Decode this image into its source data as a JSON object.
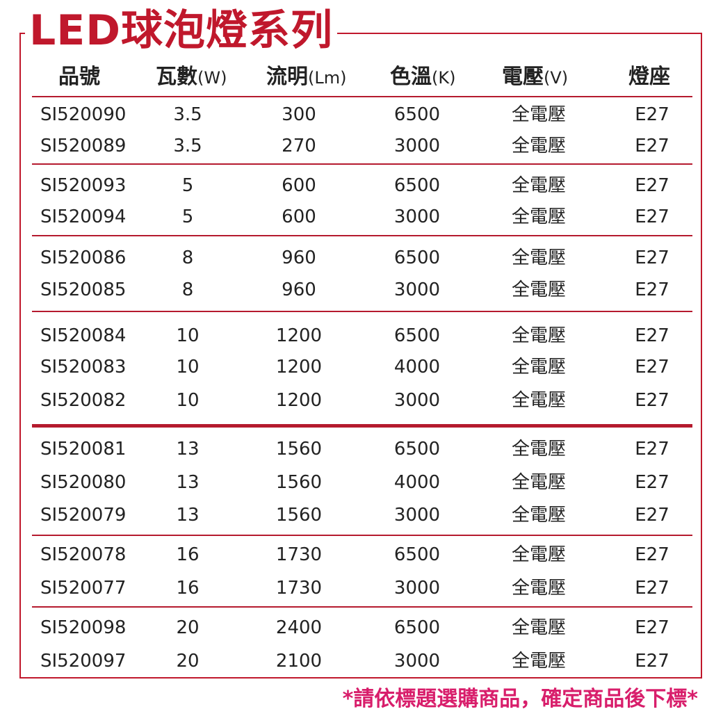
{
  "title": "LED球泡燈系列",
  "headers": [
    {
      "main": "品號",
      "unit": ""
    },
    {
      "main": "瓦數",
      "unit": "(W)"
    },
    {
      "main": "流明",
      "unit": "(Lm)"
    },
    {
      "main": "色溫",
      "unit": "(K)"
    },
    {
      "main": "電壓",
      "unit": "(V)"
    },
    {
      "main": "燈座",
      "unit": ""
    }
  ],
  "groups": [
    {
      "rows": [
        {
          "code": "SI520090",
          "watt": "3.5",
          "lumen": "300",
          "kelvin": "6500",
          "voltage": "全電壓",
          "base": "E27"
        },
        {
          "code": "SI520089",
          "watt": "3.5",
          "lumen": "270",
          "kelvin": "3000",
          "voltage": "全電壓",
          "base": "E27"
        }
      ]
    },
    {
      "rows": [
        {
          "code": "SI520093",
          "watt": "5",
          "lumen": "600",
          "kelvin": "6500",
          "voltage": "全電壓",
          "base": "E27"
        },
        {
          "code": "SI520094",
          "watt": "5",
          "lumen": "600",
          "kelvin": "3000",
          "voltage": "全電壓",
          "base": "E27"
        }
      ]
    },
    {
      "rows": [
        {
          "code": "SI520086",
          "watt": "8",
          "lumen": "960",
          "kelvin": "6500",
          "voltage": "全電壓",
          "base": "E27"
        },
        {
          "code": "SI520085",
          "watt": "8",
          "lumen": "960",
          "kelvin": "3000",
          "voltage": "全電壓",
          "base": "E27"
        }
      ]
    },
    {
      "rows": [
        {
          "code": "SI520084",
          "watt": "10",
          "lumen": "1200",
          "kelvin": "6500",
          "voltage": "全電壓",
          "base": "E27"
        },
        {
          "code": "SI520083",
          "watt": "10",
          "lumen": "1200",
          "kelvin": "4000",
          "voltage": "全電壓",
          "base": "E27"
        },
        {
          "code": "SI520082",
          "watt": "10",
          "lumen": "1200",
          "kelvin": "3000",
          "voltage": "全電壓",
          "base": "E27"
        }
      ]
    },
    {
      "rows": [
        {
          "code": "SI520081",
          "watt": "13",
          "lumen": "1560",
          "kelvin": "6500",
          "voltage": "全電壓",
          "base": "E27"
        },
        {
          "code": "SI520080",
          "watt": "13",
          "lumen": "1560",
          "kelvin": "4000",
          "voltage": "全電壓",
          "base": "E27"
        },
        {
          "code": "SI520079",
          "watt": "13",
          "lumen": "1560",
          "kelvin": "3000",
          "voltage": "全電壓",
          "base": "E27"
        }
      ]
    },
    {
      "rows": [
        {
          "code": "SI520078",
          "watt": "16",
          "lumen": "1730",
          "kelvin": "6500",
          "voltage": "全電壓",
          "base": "E27"
        },
        {
          "code": "SI520077",
          "watt": "16",
          "lumen": "1730",
          "kelvin": "3000",
          "voltage": "全電壓",
          "base": "E27"
        }
      ]
    },
    {
      "rows": [
        {
          "code": "SI520098",
          "watt": "20",
          "lumen": "2400",
          "kelvin": "6500",
          "voltage": "全電壓",
          "base": "E27"
        },
        {
          "code": "SI520097",
          "watt": "20",
          "lumen": "2100",
          "kelvin": "3000",
          "voltage": "全電壓",
          "base": "E27"
        }
      ]
    }
  ],
  "note": "*請依標題選購商品，確定商品後下標*",
  "colors": {
    "accent": "#c0182c",
    "note": "#d81e6b",
    "text": "#222222"
  }
}
